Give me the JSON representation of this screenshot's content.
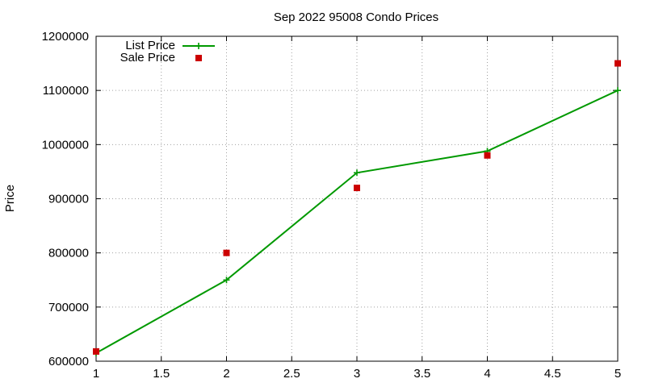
{
  "chart_data": {
    "type": "line",
    "title": "Sep 2022 95008 Condo Prices",
    "xlabel": "",
    "ylabel": "Price",
    "xlim": [
      1,
      5
    ],
    "ylim": [
      600000,
      1200000
    ],
    "x_ticks": [
      "1",
      "1.5",
      "2",
      "2.5",
      "3",
      "3.5",
      "4",
      "4.5",
      "5"
    ],
    "y_ticks": [
      "600000",
      "700000",
      "800000",
      "900000",
      "1000000",
      "1100000",
      "1200000"
    ],
    "grid": true,
    "legend_position": "top-left",
    "series": [
      {
        "name": "List Price",
        "style": "line with cross markers",
        "color": "#009900",
        "x": [
          1,
          2,
          3,
          4,
          5
        ],
        "y": [
          615000,
          750000,
          948000,
          988000,
          1100000
        ]
      },
      {
        "name": "Sale Price",
        "style": "square markers",
        "color": "#cc0000",
        "x": [
          1,
          2,
          3,
          4,
          5
        ],
        "y": [
          618000,
          800000,
          920000,
          980000,
          1150000
        ]
      }
    ]
  }
}
